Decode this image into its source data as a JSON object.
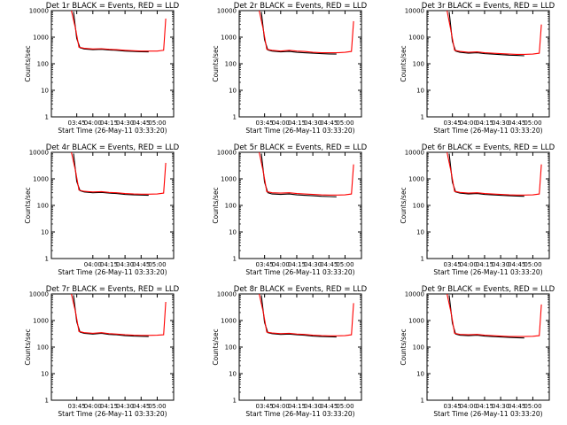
{
  "chart_data": [
    {
      "type": "line",
      "title": "Det 1r BLACK = Events, RED = LLD",
      "xlabel": "Start Time (26-May-11 03:33:20)",
      "ylabel": "Counts/sec",
      "yscale": "log",
      "ylim": [
        1,
        10000
      ],
      "yticks": [
        "1",
        "10",
        "100",
        "1000",
        "10000"
      ],
      "xlim_minutes": [
        -12,
        102
      ],
      "xticks": [
        "03:45",
        "04:00",
        "04:15",
        "04:30",
        "04:45",
        "05:00"
      ],
      "series": [
        {
          "name": "Events",
          "color": "#000000",
          "x": [
            "03:42",
            "03:45",
            "03:48",
            "03:52",
            "04:00",
            "04:08",
            "04:15",
            "04:22",
            "04:30",
            "04:38",
            "04:45",
            "04:52"
          ],
          "y": [
            9000,
            900,
            400,
            360,
            340,
            350,
            330,
            320,
            300,
            290,
            285,
            280
          ]
        },
        {
          "name": "LLD",
          "color": "#ff0000",
          "x": [
            "03:40",
            "03:44",
            "03:47",
            "03:52",
            "04:00",
            "04:08",
            "04:15",
            "04:22",
            "04:30",
            "04:38",
            "04:45",
            "04:52",
            "05:00",
            "05:06",
            "05:08"
          ],
          "y": [
            10000,
            2000,
            420,
            380,
            360,
            370,
            350,
            340,
            320,
            310,
            300,
            300,
            300,
            320,
            5000
          ]
        }
      ]
    },
    {
      "type": "line",
      "title": "Det 2r BLACK = Events, RED = LLD",
      "xlabel": "Start Time (26-May-11 03:33:20)",
      "ylabel": "Counts/sec",
      "yscale": "log",
      "ylim": [
        1,
        10000
      ],
      "yticks": [
        "1",
        "10",
        "100",
        "1000",
        "10000"
      ],
      "xlim_minutes": [
        -12,
        102
      ],
      "xticks": [
        "03:45",
        "04:00",
        "04:15",
        "04:30",
        "04:45",
        "05:00"
      ],
      "series": [
        {
          "name": "Events",
          "color": "#000000",
          "x": [
            "03:42",
            "03:45",
            "03:48",
            "03:52",
            "04:00",
            "04:08",
            "04:15",
            "04:22",
            "04:30",
            "04:38",
            "04:45",
            "04:52"
          ],
          "y": [
            9000,
            800,
            330,
            300,
            280,
            290,
            270,
            260,
            250,
            240,
            235,
            230
          ]
        },
        {
          "name": "LLD",
          "color": "#ff0000",
          "x": [
            "03:40",
            "03:44",
            "03:47",
            "03:52",
            "04:00",
            "04:08",
            "04:15",
            "04:22",
            "04:30",
            "04:38",
            "04:45",
            "04:52",
            "05:00",
            "05:06",
            "05:08"
          ],
          "y": [
            10000,
            1800,
            350,
            320,
            300,
            320,
            300,
            290,
            270,
            260,
            260,
            260,
            270,
            290,
            4000
          ]
        }
      ]
    },
    {
      "type": "line",
      "title": "Det 3r BLACK = Events, RED = LLD",
      "xlabel": "Start Time (26-May-11 03:33:20)",
      "ylabel": "Counts/sec",
      "yscale": "log",
      "ylim": [
        1,
        10000
      ],
      "yticks": [
        "1",
        "10",
        "100",
        "1000",
        "10000"
      ],
      "xlim_minutes": [
        -12,
        102
      ],
      "xticks": [
        "03:45",
        "04:00",
        "04:15",
        "04:30",
        "04:45",
        "05:00"
      ],
      "series": [
        {
          "name": "Events",
          "color": "#000000",
          "x": [
            "03:42",
            "03:45",
            "03:48",
            "03:52",
            "04:00",
            "04:08",
            "04:15",
            "04:22",
            "04:30",
            "04:38",
            "04:45",
            "04:52"
          ],
          "y": [
            9000,
            700,
            300,
            270,
            250,
            260,
            240,
            230,
            220,
            210,
            205,
            200
          ]
        },
        {
          "name": "LLD",
          "color": "#ff0000",
          "x": [
            "03:40",
            "03:44",
            "03:47",
            "03:52",
            "04:00",
            "04:08",
            "04:15",
            "04:22",
            "04:30",
            "04:38",
            "04:45",
            "04:52",
            "05:00",
            "05:06",
            "05:08"
          ],
          "y": [
            10000,
            1500,
            320,
            290,
            270,
            280,
            260,
            250,
            240,
            230,
            225,
            225,
            230,
            250,
            3000
          ]
        }
      ]
    },
    {
      "type": "line",
      "title": "Det 4r BLACK = Events, RED = LLD",
      "xlabel": "Start Time (26-May-11 03:33:20)",
      "ylabel": "Counts/sec",
      "yscale": "log",
      "ylim": [
        1,
        10000
      ],
      "yticks": [
        "1",
        "10",
        "100",
        "1000",
        "10000"
      ],
      "xlim_minutes": [
        -12,
        102
      ],
      "xticks": [
        "04:00",
        "04:15",
        "04:30",
        "04:45",
        "05:00"
      ],
      "series": [
        {
          "name": "Events",
          "color": "#000000",
          "x": [
            "03:42",
            "03:45",
            "03:48",
            "03:52",
            "04:00",
            "04:08",
            "04:15",
            "04:22",
            "04:30",
            "04:38",
            "04:45",
            "04:52"
          ],
          "y": [
            9000,
            800,
            360,
            320,
            300,
            310,
            290,
            280,
            260,
            250,
            245,
            240
          ]
        },
        {
          "name": "LLD",
          "color": "#ff0000",
          "x": [
            "03:40",
            "03:44",
            "03:47",
            "03:52",
            "04:00",
            "04:08",
            "04:15",
            "04:22",
            "04:30",
            "04:38",
            "04:45",
            "04:52",
            "05:00",
            "05:06",
            "05:08"
          ],
          "y": [
            10000,
            1900,
            380,
            340,
            320,
            330,
            310,
            300,
            280,
            270,
            265,
            265,
            270,
            290,
            4000
          ]
        }
      ]
    },
    {
      "type": "line",
      "title": "Det 5r BLACK = Events, RED = LLD",
      "xlabel": "Start Time (26-May-11 03:33:20)",
      "ylabel": "Counts/sec",
      "yscale": "log",
      "ylim": [
        1,
        10000
      ],
      "yticks": [
        "1",
        "10",
        "100",
        "1000",
        "10000"
      ],
      "xlim_minutes": [
        -12,
        102
      ],
      "xticks": [
        "03:45",
        "04:00",
        "04:15",
        "04:30",
        "04:45",
        "05:00"
      ],
      "series": [
        {
          "name": "Events",
          "color": "#000000",
          "x": [
            "03:42",
            "03:45",
            "03:48",
            "03:52",
            "04:00",
            "04:08",
            "04:15",
            "04:22",
            "04:30",
            "04:38",
            "04:45",
            "04:52"
          ],
          "y": [
            9000,
            750,
            300,
            270,
            260,
            270,
            250,
            240,
            230,
            220,
            215,
            210
          ]
        },
        {
          "name": "LLD",
          "color": "#ff0000",
          "x": [
            "03:40",
            "03:44",
            "03:47",
            "03:52",
            "04:00",
            "04:08",
            "04:15",
            "04:22",
            "04:30",
            "04:38",
            "04:45",
            "04:52",
            "05:00",
            "05:06",
            "05:08"
          ],
          "y": [
            10000,
            1700,
            330,
            300,
            290,
            300,
            280,
            270,
            260,
            250,
            245,
            245,
            250,
            270,
            3500
          ]
        }
      ]
    },
    {
      "type": "line",
      "title": "Det 6r BLACK = Events, RED = LLD",
      "xlabel": "Start Time (26-May-11 03:33:20)",
      "ylabel": "Counts/sec",
      "yscale": "log",
      "ylim": [
        1,
        10000
      ],
      "yticks": [
        "1",
        "10",
        "100",
        "1000",
        "10000"
      ],
      "xlim_minutes": [
        -12,
        102
      ],
      "xticks": [
        "03:45",
        "04:00",
        "04:15",
        "04:30",
        "04:45",
        "05:00"
      ],
      "series": [
        {
          "name": "Events",
          "color": "#000000",
          "x": [
            "03:42",
            "03:45",
            "03:48",
            "03:52",
            "04:00",
            "04:08",
            "04:15",
            "04:22",
            "04:30",
            "04:38",
            "04:45",
            "04:52"
          ],
          "y": [
            9000,
            750,
            320,
            290,
            270,
            280,
            260,
            250,
            240,
            230,
            225,
            220
          ]
        },
        {
          "name": "LLD",
          "color": "#ff0000",
          "x": [
            "03:40",
            "03:44",
            "03:47",
            "03:52",
            "04:00",
            "04:08",
            "04:15",
            "04:22",
            "04:30",
            "04:38",
            "04:45",
            "04:52",
            "05:00",
            "05:06",
            "05:08"
          ],
          "y": [
            10000,
            1700,
            340,
            310,
            290,
            300,
            280,
            270,
            260,
            250,
            245,
            245,
            250,
            270,
            3500
          ]
        }
      ]
    },
    {
      "type": "line",
      "title": "Det 7r BLACK = Events, RED = LLD",
      "xlabel": "Start Time (26-May-11 03:33:20)",
      "ylabel": "Counts/sec",
      "yscale": "log",
      "ylim": [
        1,
        10000
      ],
      "yticks": [
        "1",
        "10",
        "100",
        "1000",
        "10000"
      ],
      "xlim_minutes": [
        -12,
        102
      ],
      "xticks": [
        "03:45",
        "04:00",
        "04:15",
        "04:30",
        "04:45",
        "05:00"
      ],
      "series": [
        {
          "name": "Events",
          "color": "#000000",
          "x": [
            "03:42",
            "03:45",
            "03:48",
            "03:52",
            "04:00",
            "04:08",
            "04:15",
            "04:22",
            "04:30",
            "04:38",
            "04:45",
            "04:52"
          ],
          "y": [
            9000,
            900,
            370,
            330,
            310,
            330,
            300,
            290,
            270,
            260,
            255,
            250
          ]
        },
        {
          "name": "LLD",
          "color": "#ff0000",
          "x": [
            "03:40",
            "03:44",
            "03:47",
            "03:52",
            "04:00",
            "04:08",
            "04:15",
            "04:22",
            "04:30",
            "04:38",
            "04:45",
            "04:52",
            "05:00",
            "05:06",
            "05:08"
          ],
          "y": [
            10000,
            2000,
            390,
            350,
            330,
            350,
            320,
            310,
            290,
            280,
            275,
            275,
            280,
            290,
            5000
          ]
        }
      ]
    },
    {
      "type": "line",
      "title": "Det 8r BLACK = Events, RED = LLD",
      "xlabel": "Start Time (26-May-11 03:33:20)",
      "ylabel": "Counts/sec",
      "yscale": "log",
      "ylim": [
        1,
        10000
      ],
      "yticks": [
        "1",
        "10",
        "100",
        "1000",
        "10000"
      ],
      "xlim_minutes": [
        -12,
        102
      ],
      "xticks": [
        "03:45",
        "04:00",
        "04:15",
        "04:30",
        "04:45",
        "05:00"
      ],
      "series": [
        {
          "name": "Events",
          "color": "#000000",
          "x": [
            "03:42",
            "03:45",
            "03:48",
            "03:52",
            "04:00",
            "04:08",
            "04:15",
            "04:22",
            "04:30",
            "04:38",
            "04:45",
            "04:52"
          ],
          "y": [
            9000,
            850,
            350,
            320,
            300,
            310,
            290,
            280,
            260,
            250,
            245,
            240
          ]
        },
        {
          "name": "LLD",
          "color": "#ff0000",
          "x": [
            "03:40",
            "03:44",
            "03:47",
            "03:52",
            "04:00",
            "04:08",
            "04:15",
            "04:22",
            "04:30",
            "04:38",
            "04:45",
            "04:52",
            "05:00",
            "05:06",
            "05:08"
          ],
          "y": [
            10000,
            1900,
            370,
            340,
            320,
            330,
            310,
            300,
            280,
            270,
            265,
            265,
            270,
            290,
            4500
          ]
        }
      ]
    },
    {
      "type": "line",
      "title": "Det 9r BLACK = Events, RED = LLD",
      "xlabel": "Start Time (26-May-11 03:33:20)",
      "ylabel": "Counts/sec",
      "yscale": "log",
      "ylim": [
        1,
        10000
      ],
      "yticks": [
        "1",
        "10",
        "100",
        "1000",
        "10000"
      ],
      "xlim_minutes": [
        -12,
        102
      ],
      "xticks": [
        "03:45",
        "04:00",
        "04:15",
        "04:30",
        "04:45",
        "05:00"
      ],
      "series": [
        {
          "name": "Events",
          "color": "#000000",
          "x": [
            "03:42",
            "03:45",
            "03:48",
            "03:52",
            "04:00",
            "04:08",
            "04:15",
            "04:22",
            "04:30",
            "04:38",
            "04:45",
            "04:52"
          ],
          "y": [
            9000,
            800,
            310,
            280,
            270,
            280,
            260,
            250,
            240,
            230,
            225,
            220
          ]
        },
        {
          "name": "LLD",
          "color": "#ff0000",
          "x": [
            "03:40",
            "03:44",
            "03:47",
            "03:52",
            "04:00",
            "04:08",
            "04:15",
            "04:22",
            "04:30",
            "04:38",
            "04:45",
            "04:52",
            "05:00",
            "05:06",
            "05:08"
          ],
          "y": [
            10000,
            1800,
            330,
            300,
            290,
            300,
            280,
            270,
            260,
            250,
            250,
            250,
            255,
            270,
            4000
          ]
        }
      ]
    }
  ]
}
